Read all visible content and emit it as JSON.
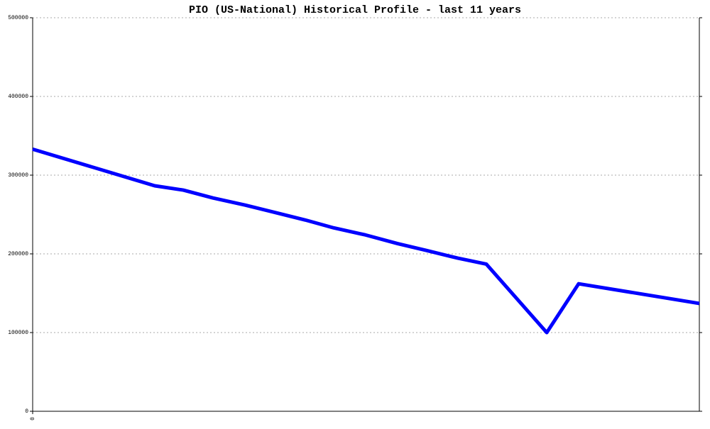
{
  "chart_data": {
    "type": "line",
    "title": "PIO (US-National) Historical Profile - last 11 years",
    "x": [
      0,
      735,
      907,
      1086,
      1279,
      1471,
      1642,
      1813,
      2005,
      2198,
      2369,
      2561,
      2732,
      3096,
      3288,
      4015
    ],
    "series": [
      {
        "color": "#0000ff",
        "values": [
          333000,
          286500,
          281000,
          271000,
          262000,
          252000,
          243000,
          233000,
          224000,
          213000,
          204500,
          194500,
          187000,
          100000,
          162000,
          137000
        ]
      }
    ],
    "xlim": [
      0,
      4015
    ],
    "xticks": [
      0
    ],
    "ylim": [
      0,
      500000
    ],
    "yticks": [
      0,
      100000,
      200000,
      300000,
      400000,
      500000
    ],
    "grid": true
  }
}
